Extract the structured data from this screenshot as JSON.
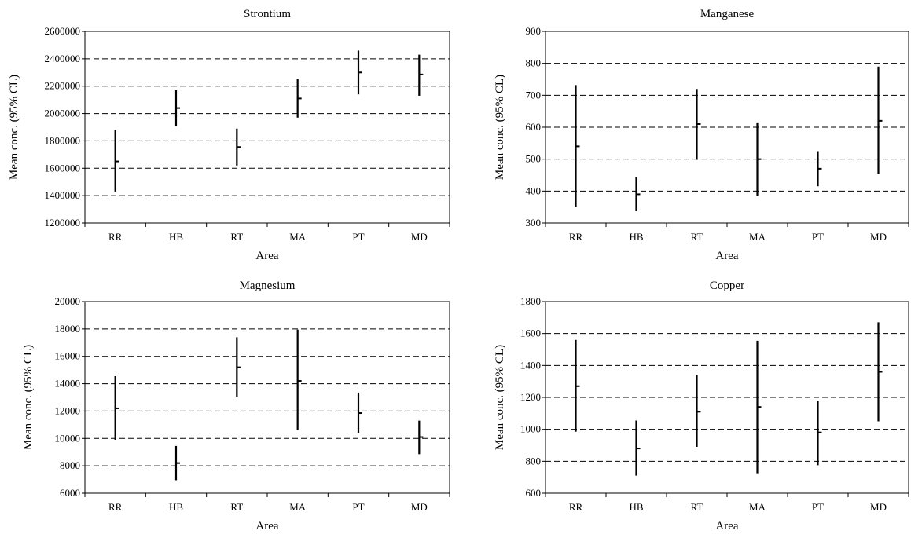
{
  "chart_data": [
    {
      "type": "errorbar",
      "title": "Strontium",
      "xlabel": "Area",
      "ylabel": "Mean conc. (95% CL)",
      "categories": [
        "RR",
        "HB",
        "RT",
        "MA",
        "PT",
        "MD"
      ],
      "ylim": [
        1200000,
        2600000
      ],
      "yticks": [
        1200000,
        1400000,
        1600000,
        1800000,
        2000000,
        2200000,
        2400000,
        2600000
      ],
      "gridlines": [
        1400000,
        1600000,
        1800000,
        2000000,
        2200000,
        2400000
      ],
      "mean": [
        1650000,
        2040000,
        1755000,
        2110000,
        2300000,
        2285000
      ],
      "lower": [
        1430000,
        1910000,
        1620000,
        1970000,
        2140000,
        2130000
      ],
      "upper": [
        1880000,
        2170000,
        1890000,
        2250000,
        2460000,
        2430000
      ]
    },
    {
      "type": "errorbar",
      "title": "Manganese",
      "xlabel": "Area",
      "ylabel": "Mean conc. (95% CL)",
      "categories": [
        "RR",
        "HB",
        "RT",
        "MA",
        "PT",
        "MD"
      ],
      "ylim": [
        300,
        900
      ],
      "yticks": [
        300,
        400,
        500,
        600,
        700,
        800,
        900
      ],
      "gridlines": [
        400,
        500,
        600,
        700,
        800
      ],
      "mean": [
        540,
        390,
        610,
        500,
        470,
        620
      ],
      "lower": [
        350,
        337,
        498,
        385,
        415,
        455
      ],
      "upper": [
        732,
        443,
        720,
        615,
        525,
        790
      ]
    },
    {
      "type": "errorbar",
      "title": "Magnesium",
      "xlabel": "Area",
      "ylabel": "Mean conc. (95% CL)",
      "categories": [
        "RR",
        "HB",
        "RT",
        "MA",
        "PT",
        "MD"
      ],
      "ylim": [
        6000,
        20000
      ],
      "yticks": [
        6000,
        8000,
        10000,
        12000,
        14000,
        16000,
        18000,
        20000
      ],
      "gridlines": [
        8000,
        10000,
        12000,
        14000,
        16000,
        18000
      ],
      "mean": [
        12200,
        8200,
        15200,
        14200,
        11850,
        10100
      ],
      "lower": [
        9900,
        6950,
        13050,
        10600,
        10400,
        8850
      ],
      "upper": [
        14550,
        9450,
        17400,
        17950,
        13350,
        11300
      ]
    },
    {
      "type": "errorbar",
      "title": "Copper",
      "xlabel": "Area",
      "ylabel": "Mean conc. (95% CL)",
      "categories": [
        "RR",
        "HB",
        "RT",
        "MA",
        "PT",
        "MD"
      ],
      "ylim": [
        600,
        1800
      ],
      "yticks": [
        600,
        800,
        1000,
        1200,
        1400,
        1600,
        1800
      ],
      "gridlines": [
        800,
        1000,
        1200,
        1400,
        1600
      ],
      "mean": [
        1270,
        880,
        1110,
        1140,
        980,
        1360
      ],
      "lower": [
        985,
        710,
        890,
        725,
        775,
        1050
      ],
      "upper": [
        1560,
        1055,
        1340,
        1555,
        1180,
        1670
      ]
    }
  ]
}
